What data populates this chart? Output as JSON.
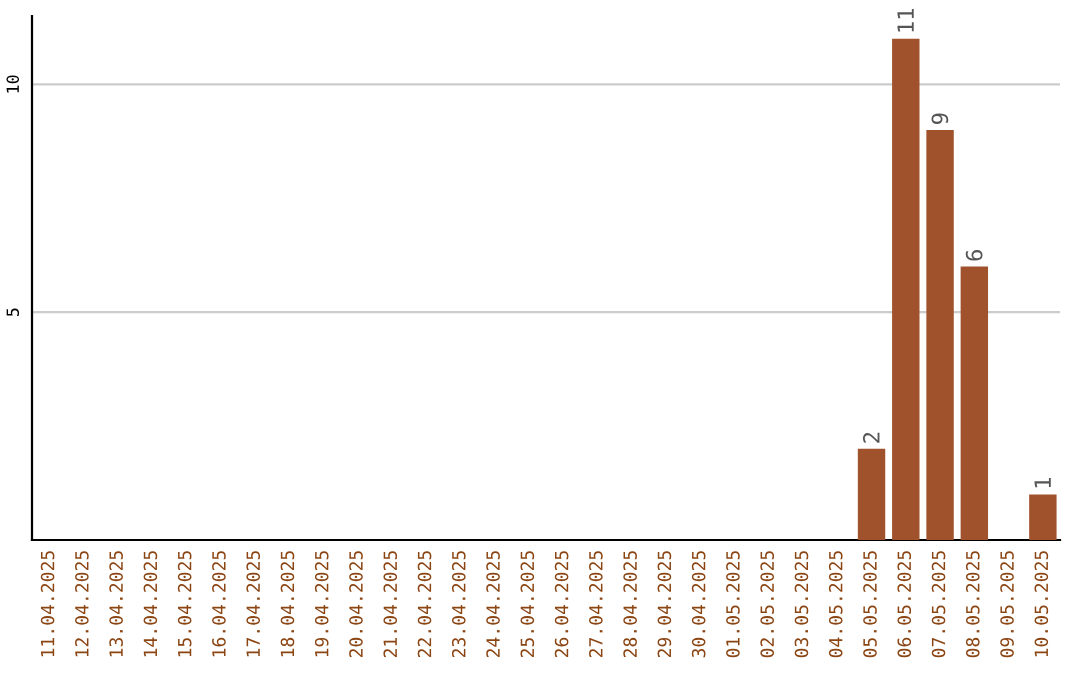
{
  "chart_data": {
    "type": "bar",
    "categories": [
      "11.04.2025",
      "12.04.2025",
      "13.04.2025",
      "14.04.2025",
      "15.04.2025",
      "16.04.2025",
      "17.04.2025",
      "18.04.2025",
      "19.04.2025",
      "20.04.2025",
      "21.04.2025",
      "22.04.2025",
      "23.04.2025",
      "24.04.2025",
      "25.04.2025",
      "26.04.2025",
      "27.04.2025",
      "28.04.2025",
      "29.04.2025",
      "30.04.2025",
      "01.05.2025",
      "02.05.2025",
      "03.05.2025",
      "04.05.2025",
      "05.05.2025",
      "06.05.2025",
      "07.05.2025",
      "08.05.2025",
      "09.05.2025",
      "10.05.2025"
    ],
    "values": [
      0,
      0,
      0,
      0,
      0,
      0,
      0,
      0,
      0,
      0,
      0,
      0,
      0,
      0,
      0,
      0,
      0,
      0,
      0,
      0,
      0,
      0,
      0,
      0,
      2,
      11,
      9,
      6,
      0,
      1
    ],
    "value_labels": [
      null,
      null,
      null,
      null,
      null,
      null,
      null,
      null,
      null,
      null,
      null,
      null,
      null,
      null,
      null,
      null,
      null,
      null,
      null,
      null,
      null,
      null,
      null,
      null,
      "2",
      "11",
      "9",
      "6",
      null,
      "1"
    ],
    "color": "#a0522d",
    "ylim": [
      0,
      11.5
    ],
    "yticks": [
      5,
      10
    ],
    "grid": "y"
  }
}
